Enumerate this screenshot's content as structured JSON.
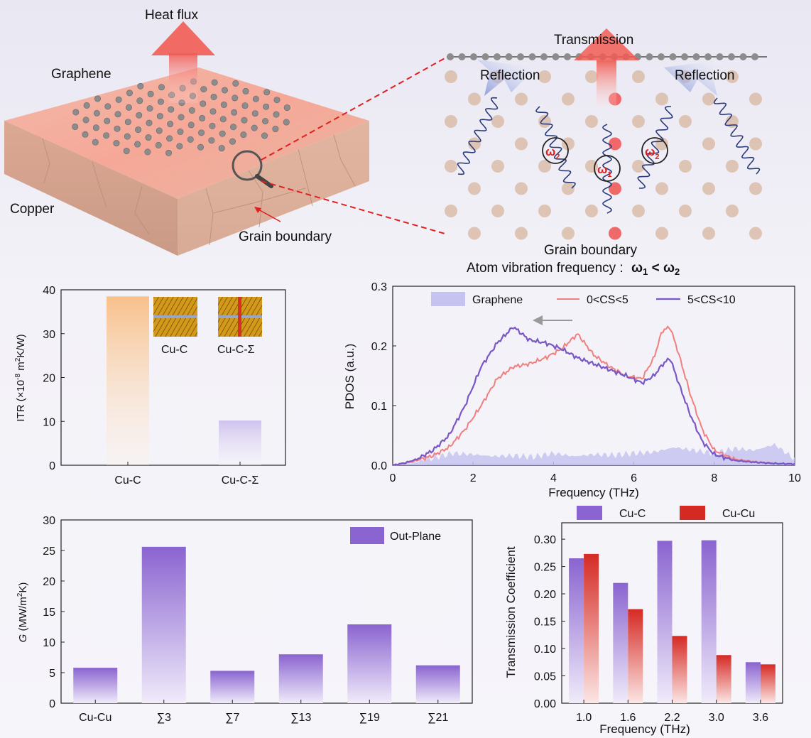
{
  "schematic": {
    "heat_flux": "Heat flux",
    "graphene": "Graphene",
    "copper": "Copper",
    "grain_boundary_left": "Grain boundary",
    "transmission": "Transmission",
    "reflection_left": "Reflection",
    "reflection_right": "Reflection",
    "grain_boundary_right": "Grain boundary",
    "omega1": "ω",
    "omega1_sub": "1",
    "omega2": "ω",
    "omega2_sub": "2",
    "freq_statement": "Atom vibration frequency :",
    "freq_relation_a": "ω",
    "freq_relation_a_sub": "1",
    "freq_relation_lt": " < ",
    "freq_relation_b": "ω",
    "freq_relation_b_sub": "2"
  },
  "colors": {
    "purple": "#7a57c7",
    "red": "#d9302a",
    "orange": "#f6b877",
    "light_purple": "#c9bde9",
    "pink_line": "#f08080"
  },
  "chart_data": [
    {
      "id": "itr",
      "type": "bar",
      "categories": [
        "Cu-C",
        "Cu-C-Σ"
      ],
      "values": [
        38.5,
        10.2
      ],
      "ylabel": "ITR (×10",
      "ylabel_sup": "-8",
      "ylabel_tail": " m",
      "ylabel_sup2": "2",
      "ylabel_end": "K/W)",
      "ylim": [
        0,
        40
      ],
      "yticks": [
        "0",
        "10",
        "20",
        "30",
        "40"
      ],
      "inset_labels": [
        "Cu-C",
        "Cu-C-Σ"
      ]
    },
    {
      "id": "pdos",
      "type": "line",
      "xlabel": "Frequency (THz)",
      "ylabel": "PDOS (a.u.)",
      "xlim": [
        0,
        10
      ],
      "ylim": [
        0,
        0.3
      ],
      "xticks": [
        "0",
        "2",
        "4",
        "6",
        "8",
        "10"
      ],
      "yticks": [
        "0.0",
        "0.1",
        "0.2",
        "0.3"
      ],
      "legend": [
        "Graphene",
        "0<CS<5",
        "5<CS<10"
      ],
      "series": [
        {
          "name": "0<CS<5",
          "x": [
            0,
            0.3,
            0.6,
            1.0,
            1.4,
            1.8,
            2.2,
            2.6,
            3.0,
            3.4,
            3.8,
            4.2,
            4.6,
            5.0,
            5.4,
            5.8,
            6.2,
            6.5,
            6.7,
            6.9,
            7.1,
            7.4,
            7.7,
            8.0,
            8.5,
            9.0,
            9.5,
            10
          ],
          "y": [
            0,
            0.003,
            0.008,
            0.016,
            0.03,
            0.06,
            0.1,
            0.145,
            0.165,
            0.17,
            0.18,
            0.195,
            0.22,
            0.185,
            0.165,
            0.15,
            0.145,
            0.18,
            0.225,
            0.232,
            0.19,
            0.12,
            0.06,
            0.025,
            0.01,
            0.006,
            0.003,
            0.002
          ]
        },
        {
          "name": "5<CS<10",
          "x": [
            0,
            0.3,
            0.6,
            1.0,
            1.4,
            1.8,
            2.2,
            2.6,
            3.0,
            3.4,
            3.8,
            4.2,
            4.6,
            5.0,
            5.4,
            5.8,
            6.2,
            6.5,
            6.7,
            6.9,
            7.1,
            7.4,
            7.7,
            8.0,
            8.5,
            9.0,
            9.5,
            10
          ],
          "y": [
            0,
            0.004,
            0.01,
            0.025,
            0.05,
            0.1,
            0.165,
            0.205,
            0.232,
            0.21,
            0.205,
            0.195,
            0.18,
            0.17,
            0.16,
            0.15,
            0.138,
            0.15,
            0.168,
            0.18,
            0.14,
            0.085,
            0.04,
            0.018,
            0.008,
            0.005,
            0.003,
            0.002
          ]
        },
        {
          "name": "Graphene",
          "x": [
            0,
            0.5,
            1.0,
            1.5,
            2.0,
            2.5,
            3.0,
            3.5,
            4.0,
            4.5,
            5.0,
            5.5,
            6.0,
            6.5,
            7.0,
            7.5,
            8.0,
            8.5,
            9.0,
            9.5,
            10
          ],
          "y": [
            0,
            0.004,
            0.012,
            0.02,
            0.018,
            0.015,
            0.016,
            0.014,
            0.02,
            0.015,
            0.018,
            0.017,
            0.02,
            0.022,
            0.03,
            0.025,
            0.02,
            0.028,
            0.025,
            0.035,
            0.01
          ]
        }
      ]
    },
    {
      "id": "conductance",
      "type": "bar",
      "categories": [
        "Cu-Cu",
        "∑3",
        "∑7",
        "∑13",
        "∑19",
        "∑21"
      ],
      "values": [
        5.8,
        25.6,
        5.3,
        8.0,
        12.9,
        6.2
      ],
      "ylabel_g": "G",
      "ylabel": " (MW/m",
      "ylabel_sup": "2",
      "ylabel_end": "K)",
      "ylim": [
        0,
        30
      ],
      "yticks": [
        "0",
        "5",
        "10",
        "15",
        "20",
        "25",
        "30"
      ],
      "legend": [
        "Out-Plane"
      ]
    },
    {
      "id": "transmission",
      "type": "bar",
      "categories": [
        "1.0",
        "1.6",
        "2.2",
        "3.0",
        "3.6"
      ],
      "xlabel": "Frequency (THz)",
      "ylabel": "Transmission Coefficient",
      "ylim": [
        0,
        0.33
      ],
      "yticks": [
        "0.00",
        "0.05",
        "0.10",
        "0.15",
        "0.20",
        "0.25",
        "0.30"
      ],
      "legend": [
        "Cu-C",
        "Cu-Cu"
      ],
      "series": [
        {
          "name": "Cu-C",
          "values": [
            0.265,
            0.22,
            0.297,
            0.298,
            0.075
          ]
        },
        {
          "name": "Cu-Cu",
          "values": [
            0.273,
            0.172,
            0.123,
            0.088,
            0.071
          ]
        }
      ]
    }
  ]
}
